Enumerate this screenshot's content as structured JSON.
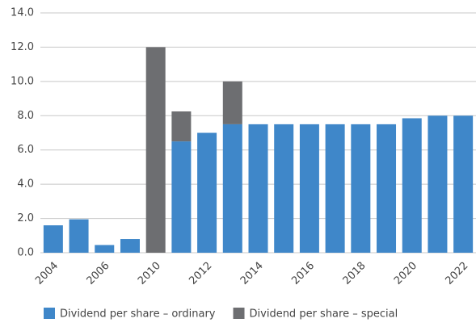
{
  "chart_data": {
    "type": "stacked_bar",
    "categories": [
      "2004",
      null,
      "2006",
      null,
      "2010",
      null,
      "2012",
      null,
      "2014",
      null,
      "2016",
      null,
      "2018",
      null,
      "2020",
      null,
      "2022"
    ],
    "series": [
      {
        "name": "Dividend per share – ordinary",
        "color": "#3f87c9",
        "values": [
          1.6,
          1.95,
          0.45,
          0.8,
          0,
          6.5,
          7.0,
          7.5,
          7.5,
          7.5,
          7.5,
          7.5,
          7.5,
          7.5,
          7.85,
          8.0,
          8.0
        ]
      },
      {
        "name": "Dividend per share – special",
        "color": "#6d6e71",
        "values": [
          0,
          0,
          0,
          0,
          12.0,
          1.75,
          0,
          2.5,
          0,
          0,
          0,
          0,
          0,
          0,
          0,
          0,
          0
        ]
      }
    ],
    "ylim": [
      0,
      14
    ],
    "yticks": [
      {
        "value": 0,
        "label": "0.0"
      },
      {
        "value": 2,
        "label": "2.0"
      },
      {
        "value": 4,
        "label": "4.0"
      },
      {
        "value": 6,
        "label": "6.0"
      },
      {
        "value": 8,
        "label": "8.0"
      },
      {
        "value": 10,
        "label": "10.0"
      },
      {
        "value": 12,
        "label": "12.0"
      },
      {
        "value": 14,
        "label": "14.0"
      }
    ],
    "grid": true,
    "legend": "bottom"
  }
}
